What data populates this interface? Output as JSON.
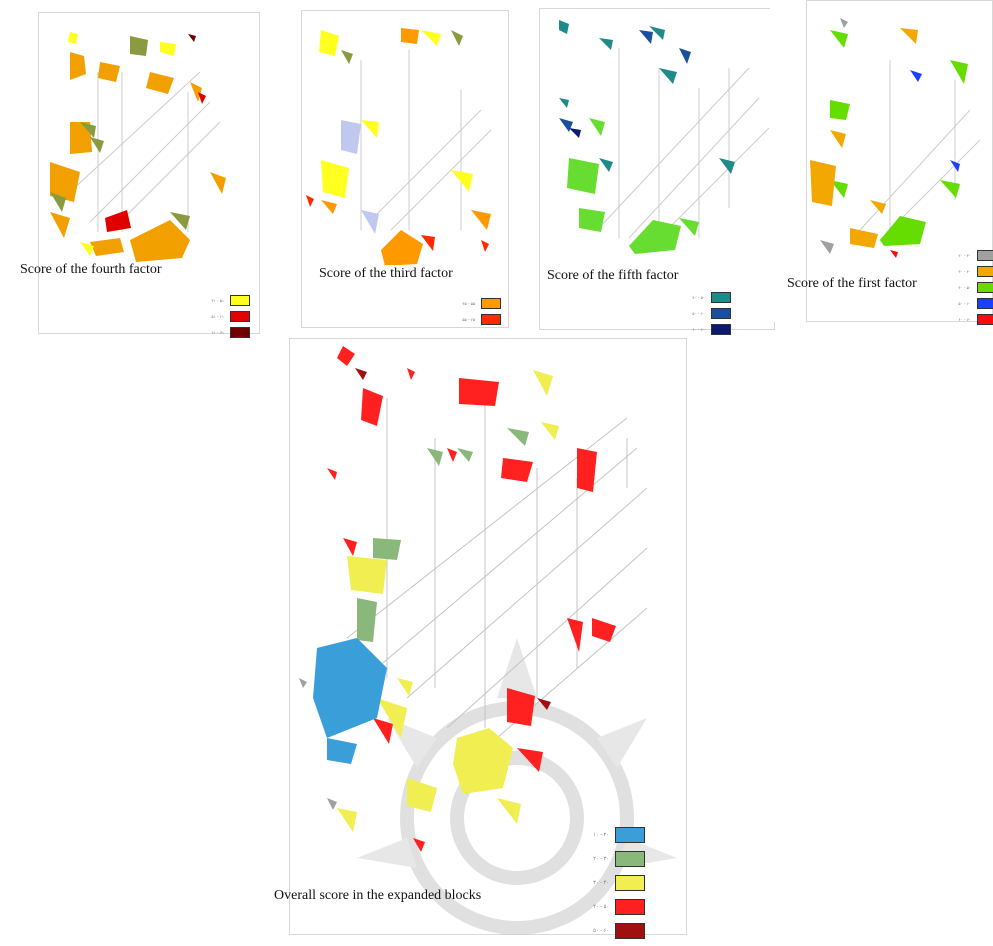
{
  "panels": [
    {
      "id": "fourth",
      "title": "Score of the fourth factor",
      "legend": [
        {
          "label": "۴۱ - ۵۱",
          "color": "#ffff20"
        },
        {
          "label": "۵۱ - ۶۱",
          "color": "#e00000"
        },
        {
          "label": "۶۱ - ۷۱",
          "color": "#700000"
        }
      ]
    },
    {
      "id": "third",
      "title": "Score of the third factor",
      "legend": [
        {
          "label": "۴۵ - ۵۵",
          "color": "#ff9900"
        },
        {
          "label": "۵۵ - ۶۵",
          "color": "#ff2a00"
        }
      ]
    },
    {
      "id": "fifth",
      "title": "Score of the fifth factor",
      "legend": [
        {
          "label": "۴۰ - ۵۰",
          "color": "#1e8a8a"
        },
        {
          "label": "۵۰ - ۶۰",
          "color": "#1a4f9c"
        },
        {
          "label": "۶۰ - ۷۰",
          "color": "#0a1a6e"
        }
      ]
    },
    {
      "id": "first",
      "title": "Score of the first factor",
      "legend": [
        {
          "label": "۲۰ - ۳۰",
          "color": "#a0a0a0"
        },
        {
          "label": "۳۰ - ۴۰",
          "color": "#f2a800"
        },
        {
          "label": "۴۰ - ۵۰",
          "color": "#66dd00"
        },
        {
          "label": "۵۰ - ۶۰",
          "color": "#1a3fff"
        },
        {
          "label": "۶۰ - ۷۰",
          "color": "#ff0a0a"
        }
      ]
    },
    {
      "id": "overall",
      "title": "Overall score in the expanded blocks",
      "legend": [
        {
          "label": "۱۰ - ۲۰",
          "color": "#3a9fd8"
        },
        {
          "label": "۲۰ - ۳۰",
          "color": "#8ab87a"
        },
        {
          "label": "۳۰ - ۴۰",
          "color": "#f0ee50"
        },
        {
          "label": "۴۰ - ۵۰",
          "color": "#ff2020"
        },
        {
          "label": "۵۰ - ۶۰",
          "color": "#a01010"
        }
      ]
    }
  ],
  "watermark_color": "#c8c8c8"
}
